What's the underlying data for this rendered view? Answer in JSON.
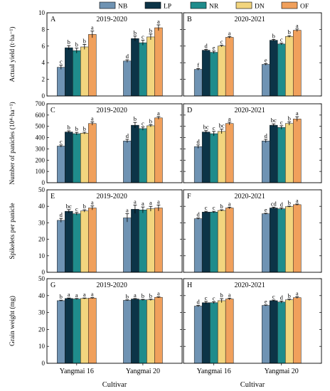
{
  "chart_data": {
    "type": "bar",
    "legend": {
      "placement": "top",
      "items": [
        "NB",
        "LP",
        "NR",
        "DN",
        "OF"
      ]
    },
    "colors": [
      "#6f93b3",
      "#0c3447",
      "#1f8c8c",
      "#f2d57e",
      "#f0a05c"
    ],
    "categories": [
      "Yangmai 16",
      "Yangmai 20"
    ],
    "xlabel": "Cultivar",
    "rows": [
      {
        "ylabel": "Actual yield (t·ha⁻¹)",
        "ylim": [
          0,
          10
        ],
        "yticks": [
          "0",
          "2",
          "4",
          "6",
          "8",
          "10"
        ],
        "panels": [
          {
            "letter": "A",
            "title": "2019-2020",
            "values": [
              [
                3.45,
                5.8,
                5.45,
                5.9,
                7.4
              ],
              [
                4.2,
                6.9,
                6.4,
                7.1,
                8.2
              ]
            ],
            "errors": [
              [
                0.25,
                0.25,
                0.3,
                0.3,
                0.4
              ],
              [
                0.15,
                0.3,
                0.3,
                0.35,
                0.35
              ]
            ],
            "letters": [
              [
                "c",
                "b",
                "b",
                "b",
                "a"
              ],
              [
                "d",
                "b",
                "c",
                "b",
                "a"
              ]
            ]
          },
          {
            "letter": "B",
            "title": "2020-2021",
            "values": [
              [
                3.2,
                5.5,
                5.25,
                6.0,
                7.05
              ],
              [
                3.8,
                6.7,
                6.25,
                7.15,
                7.9
              ]
            ],
            "errors": [
              [
                0.1,
                0.1,
                0.15,
                0.1,
                0.1
              ],
              [
                0.1,
                0.1,
                0.1,
                0.1,
                0.15
              ]
            ],
            "letters": [
              [
                "f",
                "d",
                "e",
                "c",
                "a"
              ],
              [
                "e",
                "b",
                "c",
                "b",
                "a"
              ]
            ]
          }
        ]
      },
      {
        "ylabel": "Number of panicles (10⁴·ha⁻¹)",
        "ylim": [
          0,
          700
        ],
        "yticks": [
          "0",
          "100",
          "200",
          "300",
          "400",
          "500",
          "600",
          "700"
        ],
        "panels": [
          {
            "letter": "C",
            "title": "2019-2020",
            "values": [
              [
                325,
                450,
                435,
                440,
                525
              ],
              [
                370,
                510,
                480,
                505,
                575
              ]
            ],
            "errors": [
              [
                10,
                10,
                12,
                8,
                15
              ],
              [
                15,
                25,
                15,
                10,
                12
              ]
            ],
            "letters": [
              [
                "c",
                "b",
                "b",
                "b",
                "a"
              ],
              [
                "d",
                "b",
                "c",
                "b",
                "a"
              ]
            ]
          },
          {
            "letter": "D",
            "title": "2020-2021",
            "values": [
              [
                320,
                450,
                435,
                455,
                525
              ],
              [
                370,
                510,
                490,
                525,
                565
              ]
            ],
            "errors": [
              [
                15,
                12,
                20,
                20,
                12
              ],
              [
                15,
                12,
                15,
                15,
                20
              ]
            ],
            "letters": [
              [
                "d",
                "bc",
                "c",
                "bc",
                "a"
              ],
              [
                "d",
                "bc",
                "c",
                "b",
                "a"
              ]
            ]
          }
        ]
      },
      {
        "ylabel": "Spikelets per panicle",
        "ylim": [
          0,
          50
        ],
        "yticks": [
          "0",
          "10",
          "20",
          "30",
          "40",
          "50"
        ],
        "panels": [
          {
            "letter": "E",
            "title": "2019-2020",
            "values": [
              [
                31.5,
                37,
                35.5,
                37.2,
                39
              ],
              [
                33,
                38.2,
                37.8,
                38.5,
                39
              ]
            ],
            "errors": [
              [
                1.2,
                1.0,
                0.8,
                0.7,
                1.2
              ],
              [
                2.5,
                2.5,
                1.8,
                1.5,
                1.8
              ]
            ],
            "letters": [
              [
                "d",
                "bc",
                "c",
                "b",
                "a"
              ],
              [
                "a",
                "a",
                "a",
                "a",
                "a"
              ]
            ]
          },
          {
            "letter": "F",
            "title": "2020-2021",
            "values": [
              [
                32.5,
                36.5,
                36.5,
                37.5,
                39
              ],
              [
                35.5,
                39,
                38.5,
                39.8,
                41
              ]
            ],
            "errors": [
              [
                0.4,
                0.5,
                0.5,
                0.4,
                0.5
              ],
              [
                0.3,
                0.5,
                0.6,
                0.3,
                0.4
              ]
            ],
            "letters": [
              [
                "d",
                "c",
                "c",
                "b",
                "a"
              ],
              [
                "e",
                "cd",
                "d",
                "b",
                "a"
              ]
            ]
          }
        ]
      },
      {
        "ylabel": "Grain weight (mg)",
        "ylim": [
          0,
          50
        ],
        "yticks": [
          "0",
          "10",
          "20",
          "30",
          "40",
          "50"
        ],
        "panels": [
          {
            "letter": "G",
            "title": "2019-2020",
            "values": [
              [
                37,
                38.3,
                38,
                38.3,
                38.5
              ],
              [
                37.2,
                38,
                37.5,
                37.5,
                39
              ]
            ],
            "errors": [
              [
                0.3,
                0.3,
                0.3,
                0.3,
                0.3
              ],
              [
                0.3,
                0.3,
                0.3,
                0.4,
                0.3
              ]
            ],
            "letters": [
              [
                "b",
                "a",
                "a",
                "a",
                "a"
              ],
              [
                "b",
                "a",
                "b",
                "b",
                "a"
              ]
            ]
          },
          {
            "letter": "H",
            "title": "2020-2021",
            "values": [
              [
                33.8,
                35.8,
                35.8,
                37,
                38
              ],
              [
                34.2,
                37,
                36.2,
                37.5,
                38.8
              ]
            ],
            "errors": [
              [
                0.4,
                0.8,
                0.6,
                1.2,
                0.5
              ],
              [
                0.3,
                0.4,
                0.6,
                0.4,
                0.5
              ]
            ],
            "letters": [
              [
                "d",
                "c",
                "c",
                "b",
                "a"
              ],
              [
                "e",
                "c",
                "d",
                "b",
                "a"
              ]
            ]
          }
        ]
      }
    ]
  }
}
